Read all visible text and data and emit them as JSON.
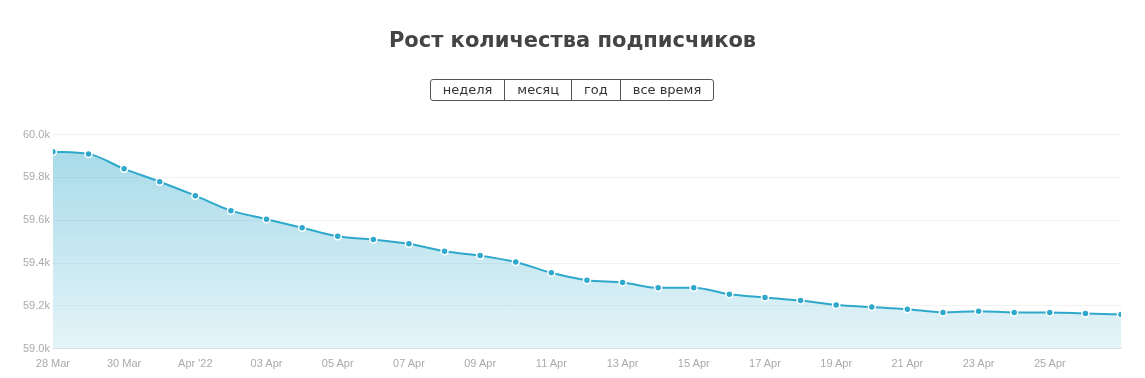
{
  "chart_data": {
    "type": "area",
    "title": "Рост количества подписчиков",
    "annotations": [
      "неделя",
      "месяц",
      "год",
      "все время"
    ],
    "x": [
      "2022-03-28",
      "2022-03-29",
      "2022-03-30",
      "2022-03-31",
      "2022-04-01",
      "2022-04-02",
      "2022-04-03",
      "2022-04-04",
      "2022-04-05",
      "2022-04-06",
      "2022-04-07",
      "2022-04-08",
      "2022-04-09",
      "2022-04-10",
      "2022-04-11",
      "2022-04-12",
      "2022-04-13",
      "2022-04-14",
      "2022-04-15",
      "2022-04-16",
      "2022-04-17",
      "2022-04-18",
      "2022-04-19",
      "2022-04-20",
      "2022-04-21",
      "2022-04-22",
      "2022-04-23",
      "2022-04-24",
      "2022-04-25",
      "2022-04-26",
      "2022-04-27"
    ],
    "series": [
      {
        "color": "#2ea8cb",
        "values": [
          59920,
          59910,
          59840,
          59780,
          59715,
          59645,
          59605,
          59565,
          59525,
          59510,
          59490,
          59455,
          59435,
          59405,
          59355,
          59320,
          59310,
          59285,
          59285,
          59255,
          59240,
          59225,
          59205,
          59195,
          59185,
          59170,
          59175,
          59170,
          59170,
          59165,
          59160
        ]
      }
    ],
    "xlim": [
      "2022-03-28",
      "2022-04-27"
    ],
    "xticks": [
      {
        "value": "2022-03-28",
        "label": "28 Mar"
      },
      {
        "value": "2022-03-30",
        "label": "30 Mar"
      },
      {
        "value": "2022-04-01",
        "label": "Apr '22"
      },
      {
        "value": "2022-04-03",
        "label": "03 Apr"
      },
      {
        "value": "2022-04-05",
        "label": "05 Apr"
      },
      {
        "value": "2022-04-07",
        "label": "07 Apr"
      },
      {
        "value": "2022-04-09",
        "label": "09 Apr"
      },
      {
        "value": "2022-04-11",
        "label": "11 Apr"
      },
      {
        "value": "2022-04-13",
        "label": "13 Apr"
      },
      {
        "value": "2022-04-15",
        "label": "15 Apr"
      },
      {
        "value": "2022-04-17",
        "label": "17 Apr"
      },
      {
        "value": "2022-04-19",
        "label": "19 Apr"
      },
      {
        "value": "2022-04-21",
        "label": "21 Apr"
      },
      {
        "value": "2022-04-23",
        "label": "23 Apr"
      },
      {
        "value": "2022-04-25",
        "label": "25 Apr"
      }
    ],
    "ylim": [
      59000,
      60000
    ],
    "yticks": [
      {
        "value": 59000,
        "label": "59.0k"
      },
      {
        "value": 59200,
        "label": "59.2k"
      },
      {
        "value": 59400,
        "label": "59.4k"
      },
      {
        "value": 59600,
        "label": "59.6k"
      },
      {
        "value": 59800,
        "label": "59.8k"
      },
      {
        "value": 60000,
        "label": "60.0k"
      }
    ],
    "grid": "y",
    "legend": false,
    "marker": "circle"
  }
}
